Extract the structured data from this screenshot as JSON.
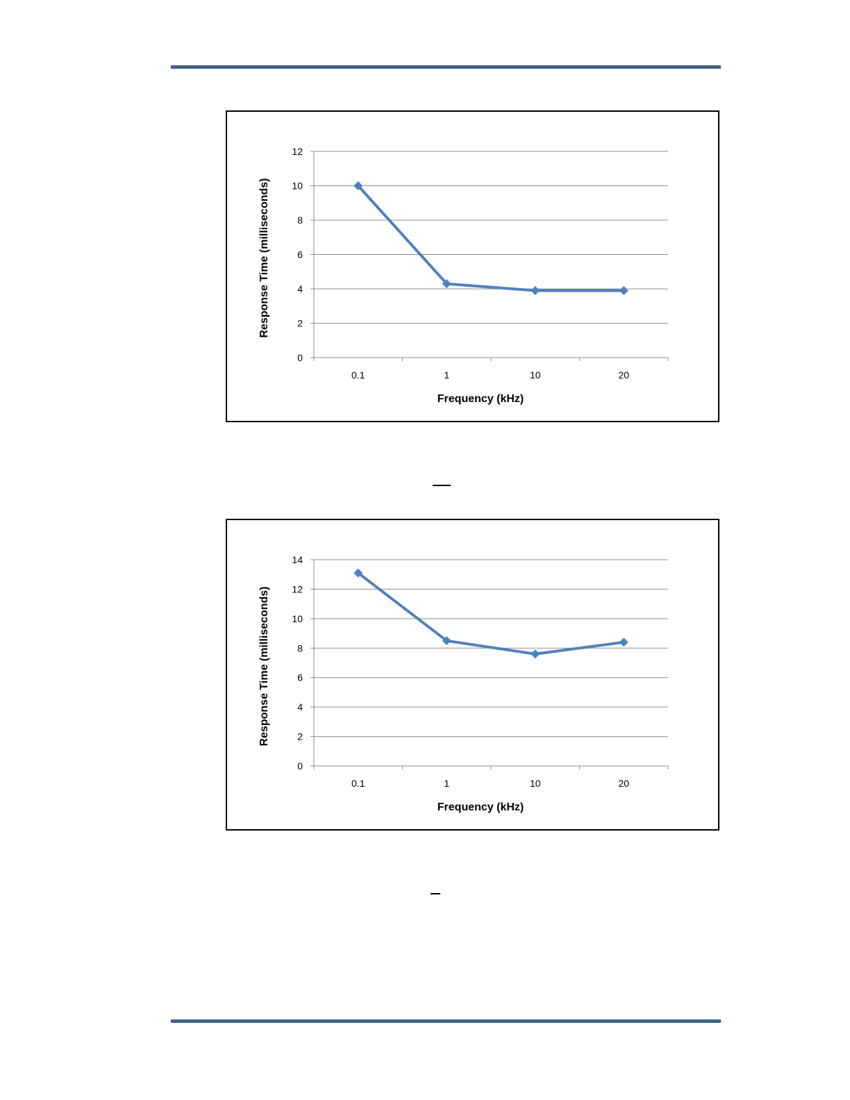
{
  "page": {
    "rule_color": "#41618a"
  },
  "chart_data": [
    {
      "type": "line",
      "title": "",
      "xlabel": "Frequency (kHz)",
      "ylabel": "Response Time (milliseconds)",
      "categories": [
        "0.1",
        "1",
        "10",
        "20"
      ],
      "series": [
        {
          "values": [
            10.0,
            4.3,
            3.9,
            3.9
          ],
          "color": "#4f81bd",
          "marker": "diamond"
        }
      ],
      "ylim": [
        0,
        12
      ],
      "ytick_step": 2,
      "grid": true,
      "legend": "none"
    },
    {
      "type": "line",
      "title": "",
      "xlabel": "Frequency (kHz)",
      "ylabel": "Response Time (milliseconds)",
      "categories": [
        "0.1",
        "1",
        "10",
        "20"
      ],
      "series": [
        {
          "values": [
            13.1,
            8.5,
            7.6,
            8.4
          ],
          "color": "#4f81bd",
          "marker": "diamond"
        }
      ],
      "ylim": [
        0,
        14
      ],
      "ytick_step": 2,
      "grid": true,
      "legend": "none"
    }
  ]
}
